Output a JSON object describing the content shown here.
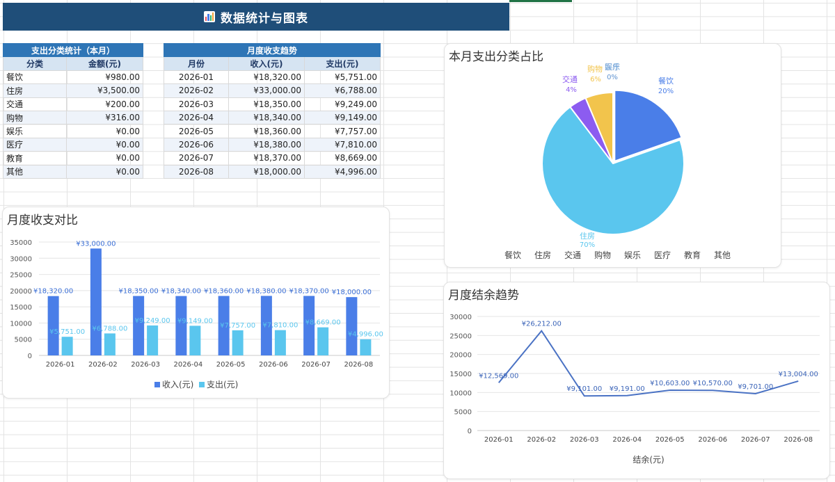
{
  "header": {
    "title": "数据统计与图表",
    "icon": "bar-chart-icon"
  },
  "category_table": {
    "title": "支出分类统计（本月）",
    "columns": [
      "分类",
      "金额(元)"
    ],
    "rows": [
      [
        "餐饮",
        "¥980.00"
      ],
      [
        "住房",
        "¥3,500.00"
      ],
      [
        "交通",
        "¥200.00"
      ],
      [
        "购物",
        "¥316.00"
      ],
      [
        "娱乐",
        "¥0.00"
      ],
      [
        "医疗",
        "¥0.00"
      ],
      [
        "教育",
        "¥0.00"
      ],
      [
        "其他",
        "¥0.00"
      ]
    ]
  },
  "trend_table": {
    "title": "月度收支趋势",
    "columns": [
      "月份",
      "收入(元)",
      "支出(元)"
    ],
    "rows": [
      [
        "2026-01",
        "¥18,320.00",
        "¥5,751.00"
      ],
      [
        "2026-02",
        "¥33,000.00",
        "¥6,788.00"
      ],
      [
        "2026-03",
        "¥18,350.00",
        "¥9,249.00"
      ],
      [
        "2026-04",
        "¥18,340.00",
        "¥9,149.00"
      ],
      [
        "2026-05",
        "¥18,360.00",
        "¥7,757.00"
      ],
      [
        "2026-06",
        "¥18,380.00",
        "¥7,810.00"
      ],
      [
        "2026-07",
        "¥18,370.00",
        "¥8,669.00"
      ],
      [
        "2026-08",
        "¥18,000.00",
        "¥4,996.00"
      ]
    ]
  },
  "colors": {
    "banner": "#1f4e79",
    "table_title": "#2e75b6",
    "income": "#4a7ee8",
    "expense": "#5ac6ee",
    "line": "#4a72c4"
  },
  "chart_data": [
    {
      "id": "pie",
      "type": "pie",
      "title": "本月支出分类占比",
      "categories": [
        "餐饮",
        "住房",
        "交通",
        "购物",
        "娱乐",
        "医疗",
        "教育",
        "其他"
      ],
      "values": [
        980,
        3500,
        200,
        316,
        0,
        0,
        0,
        0
      ],
      "slice_labels": [
        {
          "name": "餐饮",
          "pct": "20%"
        },
        {
          "name": "住房",
          "pct": "70%"
        },
        {
          "name": "交通",
          "pct": "4%"
        },
        {
          "name": "购物",
          "pct": "6%"
        },
        {
          "name": "娱乐",
          "pct": "0%"
        },
        {
          "name": "医疗",
          "pct": "0%"
        }
      ],
      "colors": [
        "#4a7ee8",
        "#5ac6ee",
        "#8c5cf0",
        "#f2c44c",
        "#5f9fd8",
        "#7fa6d8",
        "#7fbb6a",
        "#9a9a9a"
      ],
      "legend_position": "bottom"
    },
    {
      "id": "bar",
      "type": "bar",
      "title": "月度收支对比",
      "categories": [
        "2026-01",
        "2026-02",
        "2026-03",
        "2026-04",
        "2026-05",
        "2026-06",
        "2026-07",
        "2026-08"
      ],
      "series": [
        {
          "name": "收入(元)",
          "values": [
            18320,
            33000,
            18350,
            18340,
            18360,
            18380,
            18370,
            18000
          ],
          "labels": [
            "¥18,320.00",
            "¥33,000.00",
            "¥18,350.00",
            "¥18,340.00",
            "¥18,360.00",
            "¥18,380.00",
            "¥18,370.00",
            "¥18,000.00"
          ]
        },
        {
          "name": "支出(元)",
          "values": [
            5751,
            6788,
            9249,
            9149,
            7757,
            7810,
            8669,
            4996
          ],
          "labels": [
            "¥5,751.00",
            "¥6,788.00",
            "¥9,249.00",
            "¥9,149.00",
            "¥7,757.00",
            "¥7,810.00",
            "¥8,669.00",
            "¥4,996.00"
          ]
        }
      ],
      "ylim": [
        0,
        35000
      ],
      "yticks": [
        0,
        5000,
        10000,
        15000,
        20000,
        25000,
        30000,
        35000
      ],
      "grid": true,
      "legend_position": "bottom"
    },
    {
      "id": "line",
      "type": "line",
      "title": "月度结余趋势",
      "categories": [
        "2026-01",
        "2026-02",
        "2026-03",
        "2026-04",
        "2026-05",
        "2026-06",
        "2026-07",
        "2026-08"
      ],
      "series": [
        {
          "name": "结余(元)",
          "values": [
            12569,
            26212,
            9101,
            9191,
            10603,
            10570,
            9701,
            13004
          ],
          "labels": [
            "¥12,569.00",
            "¥26,212.00",
            "¥9,101.00",
            "¥9,191.00",
            "¥10,603.00",
            "¥10,570.00",
            "¥9,701.00",
            "¥13,004.00"
          ]
        }
      ],
      "ylim": [
        0,
        30000
      ],
      "yticks": [
        0,
        5000,
        10000,
        15000,
        20000,
        25000,
        30000
      ],
      "grid": true,
      "legend_position": "bottom"
    }
  ]
}
